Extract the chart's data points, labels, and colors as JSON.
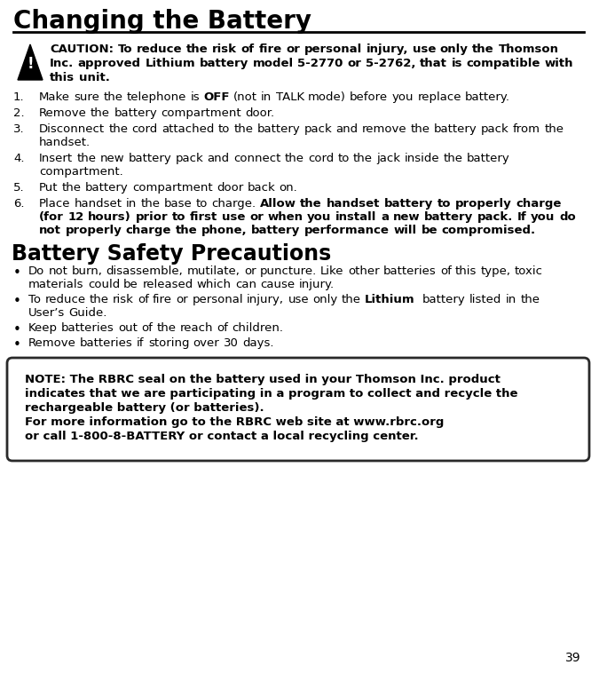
{
  "title": "Changing the Battery",
  "title_fontsize": 20,
  "body_fontsize": 9.5,
  "section2_title": "Battery Safety Precautions",
  "section2_title_fontsize": 17,
  "caution_text": "CAUTION: To reduce the risk of fire or personal injury, use only the Thomson Inc. approved Lithium battery model 5-2770 or 5-2762, that is compatible with this unit.",
  "caution_fontsize": 9.5,
  "steps": [
    {
      "num": "1.",
      "normal": "Make sure the telephone is ",
      "bold": "OFF",
      "normal2": " (not in TALK mode) before you replace battery.",
      "type": "mixed_start"
    },
    {
      "num": "2.",
      "normal": "Remove the battery compartment door.",
      "bold": "",
      "normal2": "",
      "type": "normal"
    },
    {
      "num": "3.",
      "normal": "Disconnect the cord attached to the battery pack and remove the battery pack from the handset.",
      "bold": "",
      "normal2": "",
      "type": "normal"
    },
    {
      "num": "4.",
      "normal": "Insert the new battery pack and connect the cord to the jack inside the battery compartment.",
      "bold": "",
      "normal2": "",
      "type": "normal"
    },
    {
      "num": "5.",
      "normal": "Put the battery compartment door back on.",
      "bold": "",
      "normal2": "",
      "type": "normal"
    },
    {
      "num": "6.",
      "normal": "Place handset in the base to charge. ",
      "bold": "Allow the handset battery to properly charge (for 12 hours) prior to first use or when you install a new battery pack. If you do not properly charge the phone, battery performance will be compromised.",
      "normal2": "",
      "type": "normal_then_bold"
    }
  ],
  "bullets": [
    {
      "parts": [
        {
          "text": "Do not burn, disassemble, mutilate, or puncture. Like other batteries of this type, toxic materials could be released which can cause injury.",
          "bold": false
        }
      ]
    },
    {
      "parts": [
        {
          "text": "To reduce the risk of fire or personal injury, use only the ",
          "bold": false
        },
        {
          "text": "Lithium",
          "bold": true
        },
        {
          "text": "  battery listed in the User’s Guide.",
          "bold": false
        }
      ]
    },
    {
      "parts": [
        {
          "text": "Keep batteries out of the reach of children.",
          "bold": false
        }
      ]
    },
    {
      "parts": [
        {
          "text": "Remove batteries if storing over 30 days.",
          "bold": false
        }
      ]
    }
  ],
  "note_lines": [
    "NOTE: The RBRC seal on the battery used in your Thomson Inc. product",
    "indicates that we are participating in a program to collect and recycle the",
    "rechargeable battery (or batteries).",
    "For more information go to the RBRC web site at www.rbrc.org",
    "or call 1-800-8-BATTERY or contact a local recycling center."
  ],
  "page_number": "39",
  "bg_color": "#ffffff",
  "text_color": "#000000",
  "line_color": "#000000"
}
